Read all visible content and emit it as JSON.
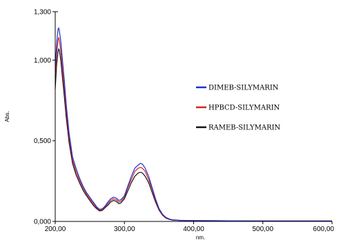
{
  "chart_data": {
    "type": "line",
    "xlabel": "nm.",
    "ylabel": "Abs.",
    "xlim": [
      200,
      600
    ],
    "ylim": [
      0,
      1.3
    ],
    "x_ticks": [
      {
        "value": 200,
        "label": "200,00"
      },
      {
        "value": 300,
        "label": "300,00"
      },
      {
        "value": 400,
        "label": "400,00"
      },
      {
        "value": 500,
        "label": "500,00"
      },
      {
        "value": 600,
        "label": "600,00"
      }
    ],
    "y_ticks": [
      {
        "value": 0,
        "label": "0,000"
      },
      {
        "value": 0.5,
        "label": "0,500"
      },
      {
        "value": 1.0,
        "label": "1,000"
      },
      {
        "value": 1.3,
        "label": "1,300"
      }
    ],
    "legend_position": "right",
    "grid": false,
    "series": [
      {
        "name": "DIMEB-SILYMARIN",
        "color": "#1a2fd0",
        "points": [
          [
            200,
            0.95
          ],
          [
            202,
            1.1
          ],
          [
            204,
            1.19
          ],
          [
            205,
            1.2
          ],
          [
            206,
            1.18
          ],
          [
            208,
            1.12
          ],
          [
            210,
            1.02
          ],
          [
            213,
            0.88
          ],
          [
            216,
            0.72
          ],
          [
            220,
            0.55
          ],
          [
            225,
            0.4
          ],
          [
            230,
            0.33
          ],
          [
            235,
            0.27
          ],
          [
            240,
            0.22
          ],
          [
            245,
            0.18
          ],
          [
            250,
            0.15
          ],
          [
            255,
            0.12
          ],
          [
            260,
            0.09
          ],
          [
            264,
            0.075
          ],
          [
            268,
            0.078
          ],
          [
            272,
            0.095
          ],
          [
            276,
            0.12
          ],
          [
            280,
            0.14
          ],
          [
            284,
            0.15
          ],
          [
            288,
            0.145
          ],
          [
            292,
            0.13
          ],
          [
            295,
            0.135
          ],
          [
            300,
            0.16
          ],
          [
            305,
            0.22
          ],
          [
            310,
            0.28
          ],
          [
            315,
            0.33
          ],
          [
            320,
            0.35
          ],
          [
            323,
            0.36
          ],
          [
            326,
            0.355
          ],
          [
            330,
            0.33
          ],
          [
            335,
            0.28
          ],
          [
            340,
            0.21
          ],
          [
            345,
            0.14
          ],
          [
            350,
            0.08
          ],
          [
            355,
            0.045
          ],
          [
            360,
            0.025
          ],
          [
            365,
            0.015
          ],
          [
            370,
            0.01
          ],
          [
            380,
            0.007
          ],
          [
            400,
            0.005
          ],
          [
            450,
            0.004
          ],
          [
            500,
            0.003
          ],
          [
            550,
            0.003
          ],
          [
            600,
            0.003
          ]
        ]
      },
      {
        "name": "HPBCD-SILYMARIN",
        "color": "#d42020",
        "points": [
          [
            200,
            0.9
          ],
          [
            202,
            1.04
          ],
          [
            204,
            1.12
          ],
          [
            205,
            1.14
          ],
          [
            206,
            1.12
          ],
          [
            208,
            1.06
          ],
          [
            210,
            0.96
          ],
          [
            213,
            0.83
          ],
          [
            216,
            0.68
          ],
          [
            220,
            0.52
          ],
          [
            225,
            0.38
          ],
          [
            230,
            0.31
          ],
          [
            235,
            0.255
          ],
          [
            240,
            0.21
          ],
          [
            245,
            0.17
          ],
          [
            250,
            0.14
          ],
          [
            255,
            0.11
          ],
          [
            260,
            0.085
          ],
          [
            264,
            0.07
          ],
          [
            268,
            0.073
          ],
          [
            272,
            0.09
          ],
          [
            276,
            0.11
          ],
          [
            280,
            0.13
          ],
          [
            284,
            0.14
          ],
          [
            288,
            0.135
          ],
          [
            292,
            0.12
          ],
          [
            295,
            0.125
          ],
          [
            300,
            0.15
          ],
          [
            305,
            0.21
          ],
          [
            310,
            0.26
          ],
          [
            315,
            0.31
          ],
          [
            320,
            0.33
          ],
          [
            323,
            0.335
          ],
          [
            326,
            0.33
          ],
          [
            330,
            0.31
          ],
          [
            335,
            0.26
          ],
          [
            340,
            0.2
          ],
          [
            345,
            0.13
          ],
          [
            350,
            0.075
          ],
          [
            355,
            0.04
          ],
          [
            360,
            0.022
          ],
          [
            365,
            0.013
          ],
          [
            370,
            0.009
          ],
          [
            380,
            0.006
          ],
          [
            400,
            0.005
          ],
          [
            450,
            0.004
          ],
          [
            500,
            0.003
          ],
          [
            550,
            0.003
          ],
          [
            600,
            0.003
          ]
        ]
      },
      {
        "name": "RAMEB-SILYMARIN",
        "color": "#111111",
        "points": [
          [
            200,
            0.82
          ],
          [
            202,
            0.97
          ],
          [
            204,
            1.05
          ],
          [
            205,
            1.07
          ],
          [
            206,
            1.06
          ],
          [
            208,
            1.0
          ],
          [
            210,
            0.91
          ],
          [
            213,
            0.78
          ],
          [
            216,
            0.64
          ],
          [
            220,
            0.49
          ],
          [
            225,
            0.36
          ],
          [
            230,
            0.29
          ],
          [
            235,
            0.24
          ],
          [
            240,
            0.195
          ],
          [
            245,
            0.16
          ],
          [
            250,
            0.13
          ],
          [
            255,
            0.1
          ],
          [
            260,
            0.078
          ],
          [
            264,
            0.065
          ],
          [
            268,
            0.068
          ],
          [
            272,
            0.085
          ],
          [
            276,
            0.1
          ],
          [
            280,
            0.12
          ],
          [
            284,
            0.13
          ],
          [
            288,
            0.125
          ],
          [
            292,
            0.11
          ],
          [
            295,
            0.115
          ],
          [
            300,
            0.14
          ],
          [
            305,
            0.19
          ],
          [
            310,
            0.24
          ],
          [
            315,
            0.28
          ],
          [
            320,
            0.3
          ],
          [
            323,
            0.305
          ],
          [
            326,
            0.3
          ],
          [
            330,
            0.28
          ],
          [
            335,
            0.24
          ],
          [
            340,
            0.18
          ],
          [
            345,
            0.12
          ],
          [
            350,
            0.07
          ],
          [
            355,
            0.038
          ],
          [
            360,
            0.02
          ],
          [
            365,
            0.012
          ],
          [
            370,
            0.008
          ],
          [
            380,
            0.006
          ],
          [
            400,
            0.005
          ],
          [
            450,
            0.004
          ],
          [
            500,
            0.003
          ],
          [
            550,
            0.003
          ],
          [
            600,
            0.003
          ]
        ]
      }
    ]
  }
}
